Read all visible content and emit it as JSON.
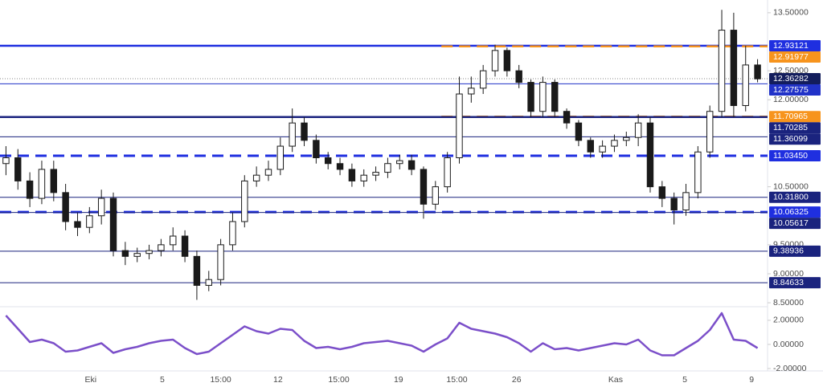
{
  "chart_data": {
    "type": "candlestick",
    "color": "#1a1a1a",
    "xlim": [
      0,
      64
    ],
    "xticks": [
      {
        "value": 7.6,
        "label": "Eki"
      },
      {
        "value": 13.6,
        "label": "5"
      },
      {
        "value": 18.5,
        "label": "15:00"
      },
      {
        "value": 23.3,
        "label": "12"
      },
      {
        "value": 28.4,
        "label": "15:00"
      },
      {
        "value": 33.4,
        "label": "19"
      },
      {
        "value": 38.3,
        "label": "15:00"
      },
      {
        "value": 43.3,
        "label": "26"
      },
      {
        "value": 51.6,
        "label": "Kas"
      },
      {
        "value": 57.4,
        "label": "5"
      },
      {
        "value": 63.0,
        "label": "9"
      }
    ],
    "ylim": [
      8.46,
      13.72
    ],
    "yticks": [
      {
        "value": 13.5,
        "label": "13.50000"
      },
      {
        "value": 12.5,
        "label": "12.50000"
      },
      {
        "value": 12.0,
        "label": "12.00000"
      },
      {
        "value": 10.5,
        "label": "10.50000"
      },
      {
        "value": 9.5,
        "label": "9.50000"
      },
      {
        "value": 9.0,
        "label": "9.00000"
      },
      {
        "value": 8.5,
        "label": "8.50000"
      }
    ],
    "open": [
      10.9,
      11.0,
      10.6,
      10.3,
      10.8,
      10.4,
      9.9,
      9.8,
      10.0,
      10.3,
      9.4,
      9.3,
      9.35,
      9.4,
      9.5,
      9.65,
      9.3,
      8.8,
      8.9,
      9.5,
      9.9,
      10.6,
      10.7,
      10.8,
      11.2,
      11.6,
      11.3,
      11.0,
      10.9,
      10.8,
      10.6,
      10.7,
      10.75,
      10.9,
      10.95,
      10.8,
      10.2,
      10.5,
      11.0,
      12.1,
      12.2,
      12.5,
      12.85,
      12.5,
      12.3,
      11.8,
      12.3,
      11.8,
      11.6,
      11.3,
      11.1,
      11.2,
      11.3,
      11.35,
      11.6,
      10.5,
      10.3,
      10.1,
      10.4,
      11.1,
      11.8,
      13.2,
      11.9,
      12.6
    ],
    "high": [
      11.2,
      11.15,
      10.75,
      10.95,
      10.95,
      10.55,
      10.05,
      10.15,
      10.45,
      10.4,
      9.55,
      9.45,
      9.5,
      9.6,
      9.8,
      9.75,
      9.4,
      9.05,
      9.6,
      10.05,
      10.7,
      10.85,
      10.95,
      11.35,
      11.85,
      11.7,
      11.4,
      11.1,
      11.0,
      10.9,
      10.8,
      10.85,
      11.0,
      11.05,
      11.05,
      10.85,
      10.6,
      11.1,
      12.4,
      12.4,
      12.6,
      12.95,
      12.9,
      12.6,
      12.35,
      12.4,
      12.35,
      11.85,
      11.65,
      11.35,
      11.3,
      11.4,
      11.45,
      11.75,
      11.7,
      10.6,
      10.4,
      10.55,
      11.2,
      11.9,
      13.55,
      13.5,
      12.93,
      12.7
    ],
    "low": [
      10.7,
      10.45,
      10.15,
      10.2,
      10.25,
      9.75,
      9.65,
      9.7,
      9.85,
      9.3,
      9.15,
      9.2,
      9.25,
      9.3,
      9.4,
      9.2,
      8.55,
      8.7,
      8.8,
      9.4,
      9.8,
      10.5,
      10.6,
      10.7,
      11.1,
      11.2,
      10.9,
      10.8,
      10.7,
      10.5,
      10.5,
      10.6,
      10.65,
      10.8,
      10.7,
      9.95,
      10.1,
      10.4,
      10.9,
      11.95,
      12.1,
      12.4,
      12.4,
      12.2,
      11.7,
      11.7,
      11.7,
      11.5,
      11.2,
      11.0,
      11.0,
      11.1,
      11.2,
      11.2,
      10.4,
      10.15,
      9.85,
      10.0,
      10.3,
      11.0,
      11.7,
      11.7,
      11.8,
      12.3
    ],
    "close": [
      11.0,
      10.6,
      10.3,
      10.8,
      10.4,
      9.9,
      9.8,
      10.0,
      10.3,
      9.4,
      9.3,
      9.35,
      9.4,
      9.5,
      9.65,
      9.3,
      8.8,
      8.9,
      9.5,
      9.9,
      10.6,
      10.7,
      10.8,
      11.2,
      11.6,
      11.3,
      11.0,
      10.9,
      10.8,
      10.6,
      10.7,
      10.75,
      10.9,
      10.95,
      10.8,
      10.2,
      10.5,
      11.0,
      12.1,
      12.2,
      12.5,
      12.85,
      12.5,
      12.3,
      11.8,
      12.3,
      11.8,
      11.6,
      11.3,
      11.1,
      11.2,
      11.3,
      11.35,
      11.6,
      10.5,
      10.3,
      10.1,
      10.4,
      11.1,
      11.8,
      13.2,
      11.9,
      12.6,
      12.36
    ],
    "levels": [
      {
        "value": 12.93121,
        "label": "12.93121",
        "color": "#1f2fe0",
        "style": "solid",
        "width": 2.5
      },
      {
        "value": 12.91977,
        "label": "12.91977",
        "color": "#f7941d",
        "style": "dashed",
        "width": 2.5,
        "start": 37
      },
      {
        "value": 12.36282,
        "label": "12.36282",
        "color": "#131d5c",
        "style": "dotted",
        "width": 1
      },
      {
        "value": 12.27575,
        "label": "12.27575",
        "color": "#2132c8",
        "style": "solid",
        "width": 1
      },
      {
        "value": 11.70965,
        "label": "11.70965",
        "color": "#f7941d",
        "style": "dashed",
        "width": 2.5,
        "start": 37
      },
      {
        "value": 11.70285,
        "label": "11.70285",
        "color": "#1a237e",
        "style": "solid",
        "width": 2.5
      },
      {
        "value": 11.36099,
        "label": "11.36099",
        "color": "#1a237e",
        "style": "solid",
        "width": 1
      },
      {
        "value": 11.0345,
        "label": "11.03450",
        "color": "#1f2fe0",
        "style": "dashed",
        "width": 3
      },
      {
        "value": 10.318,
        "label": "10.31800",
        "color": "#1a237e",
        "style": "solid",
        "width": 1
      },
      {
        "value": 10.06325,
        "label": "10.06325",
        "color": "#1f2fe0",
        "style": "dashed",
        "width": 3
      },
      {
        "value": 10.05617,
        "label": "10.05617",
        "color": "#1a237e",
        "style": "solid",
        "width": 1
      },
      {
        "value": 9.38936,
        "label": "9.38936",
        "color": "#1a237e",
        "style": "solid",
        "width": 1
      },
      {
        "value": 8.84633,
        "label": "8.84633",
        "color": "#1a237e",
        "style": "solid",
        "width": 1
      }
    ],
    "oscillator": {
      "color": "#7b4fc9",
      "ylim": [
        -2.2,
        2.93
      ],
      "yticks": [
        {
          "value": 2,
          "label": "2.00000"
        },
        {
          "value": 0,
          "label": "0.00000"
        },
        {
          "value": -2,
          "label": "-2.00000"
        }
      ],
      "values": [
        2.4,
        1.3,
        0.2,
        0.4,
        0.1,
        -0.6,
        -0.5,
        -0.2,
        0.1,
        -0.7,
        -0.4,
        -0.2,
        0.1,
        0.3,
        0.4,
        -0.3,
        -0.8,
        -0.6,
        0.1,
        0.8,
        1.5,
        1.1,
        0.9,
        1.3,
        1.2,
        0.3,
        -0.3,
        -0.2,
        -0.4,
        -0.2,
        0.1,
        0.2,
        0.3,
        0.1,
        -0.1,
        -0.6,
        0.0,
        0.5,
        1.8,
        1.3,
        1.1,
        0.9,
        0.6,
        0.1,
        -0.6,
        0.1,
        -0.4,
        -0.3,
        -0.5,
        -0.3,
        -0.1,
        0.1,
        0.0,
        0.4,
        -0.5,
        -0.9,
        -0.9,
        -0.3,
        0.3,
        1.2,
        2.6,
        0.4,
        0.3,
        -0.3
      ]
    }
  }
}
